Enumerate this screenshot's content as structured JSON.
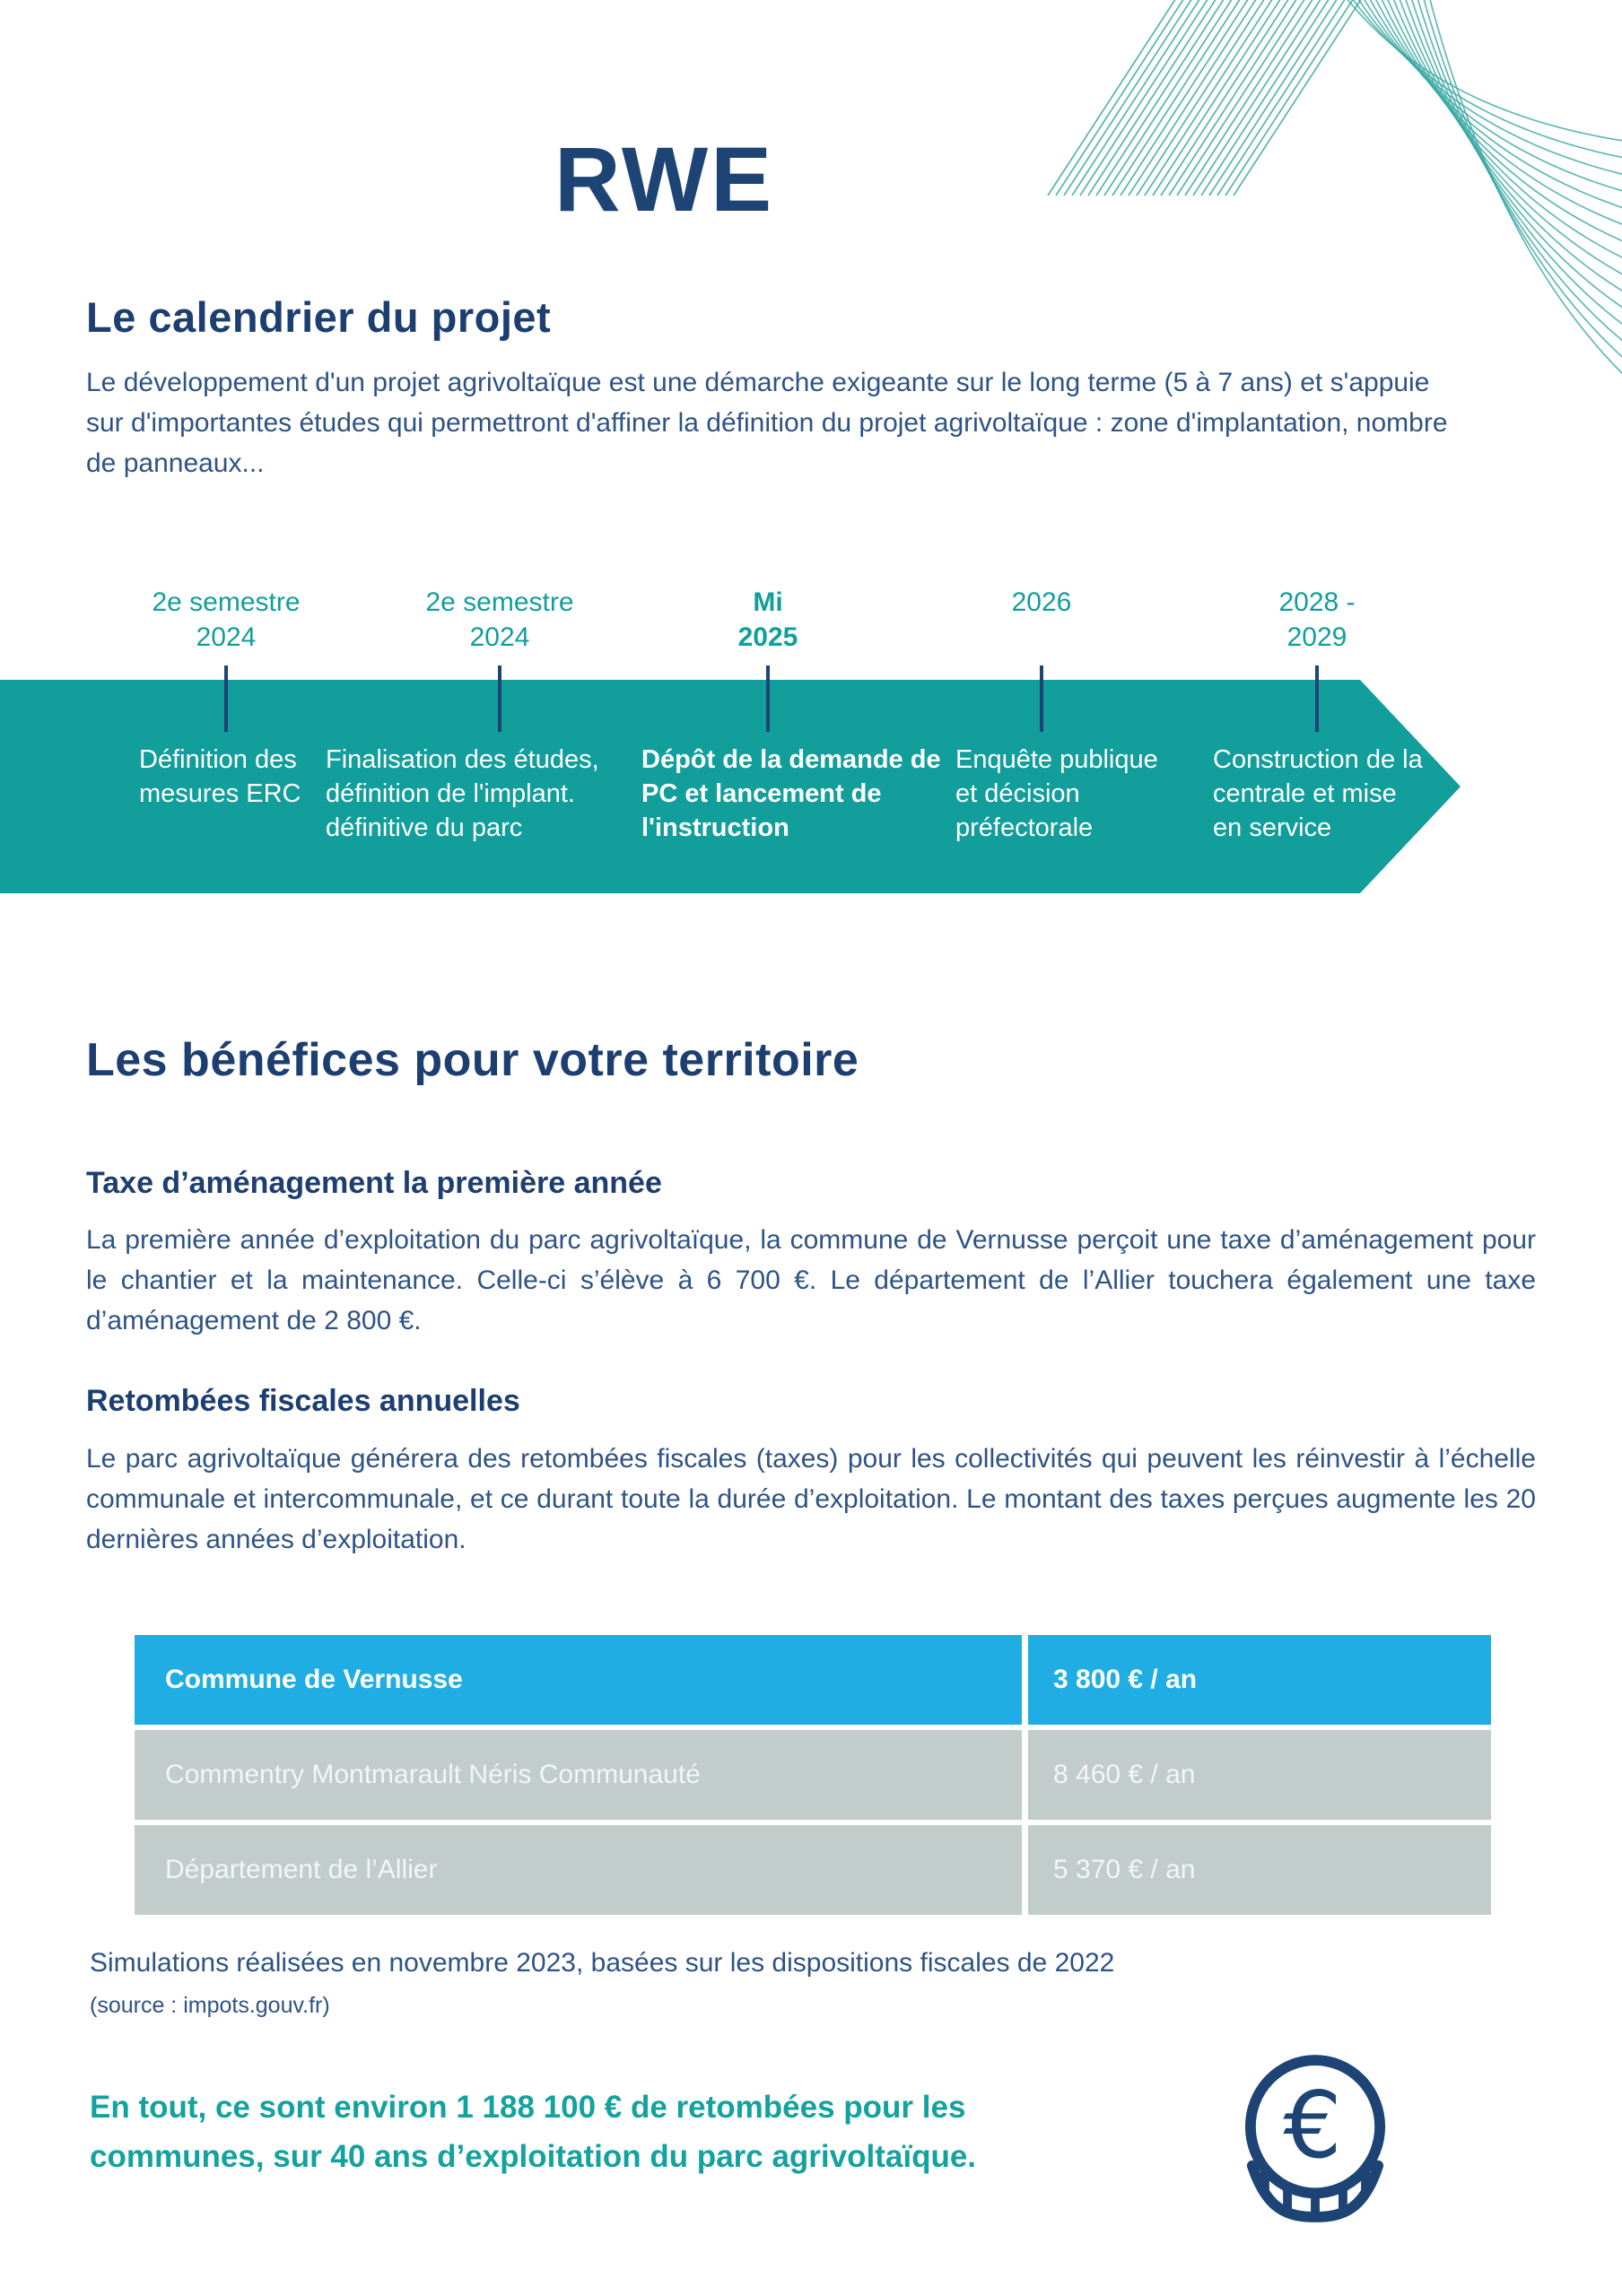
{
  "page": {
    "logo_text": "RWE"
  },
  "colors": {
    "navy": "#1d4475",
    "heading": "#1d3e70",
    "body": "#2e5385",
    "teal": "#129e9b",
    "cyan": "#1fade4",
    "grayrow": "#c2cccb",
    "callout": "#14a29e"
  },
  "calendar": {
    "title": "Le calendrier du projet",
    "intro": "Le développement d'un projet agrivoltaïque est une démarche exigeante sur le long terme (5 à 7 ans) et s'appuie sur d'importantes études qui permettront d'affiner la définition du projet agrivoltaïque : zone d'implantation, nombre de panneaux...",
    "milestones": [
      {
        "date": "2e semestre\n2024",
        "label": "Définition des mesures ERC",
        "emphasis": false
      },
      {
        "date": "2e semestre\n2024",
        "label": "Finalisation des études, définition de l'implant. définitive du parc",
        "emphasis": false
      },
      {
        "date": "Mi\n2025",
        "label": "Dépôt de la demande de PC et lancement de l'instruction",
        "emphasis": true
      },
      {
        "date": "2026",
        "label": "Enquête publique et décision préfectorale",
        "emphasis": false
      },
      {
        "date": "2028 -\n2029",
        "label": "Construction de la centrale et mise en service",
        "emphasis": false
      }
    ]
  },
  "benefits": {
    "title": "Les bénéfices pour votre territoire",
    "sections": [
      {
        "heading": "Taxe d’aménagement la première année",
        "body": "La première année d’exploitation du parc agrivoltaïque, la commune de Vernusse perçoit une taxe d’aménagement pour le chantier et la maintenance. Celle-ci s’élève à 6 700 €. Le département de l’Allier touchera également une taxe d’aménagement de 2 800 €."
      },
      {
        "heading": "Retombées fiscales annuelles",
        "body": "Le parc agrivoltaïque générera des retombées fiscales (taxes) pour les collectivités qui peuvent les réinvestir à l’échelle communale et intercommunale, et ce durant toute la durée d’exploitation. Le montant des taxes perçues augmente les 20 dernières années d’exploitation."
      }
    ],
    "table": {
      "rows": [
        {
          "label": "Commune de Vernusse",
          "value": "3 800 € / an",
          "highlight": true
        },
        {
          "label": "Commentry Montmarault Néris Communauté",
          "value": "8 460 € / an",
          "highlight": false
        },
        {
          "label": "Département de l’Allier",
          "value": "5 370 € / an",
          "highlight": false
        }
      ]
    },
    "note_line1": "Simulations réalisées en novembre 2023, basées sur les dispositions fiscales de 2022",
    "note_line2": "(source : impots.gouv.fr)",
    "total_callout": "En tout, ce sont environ 1 188 100 € de retombées pour les communes, sur 40 ans d’exploitation du parc agrivoltaïque.",
    "euro_icon": "euro-coin"
  }
}
